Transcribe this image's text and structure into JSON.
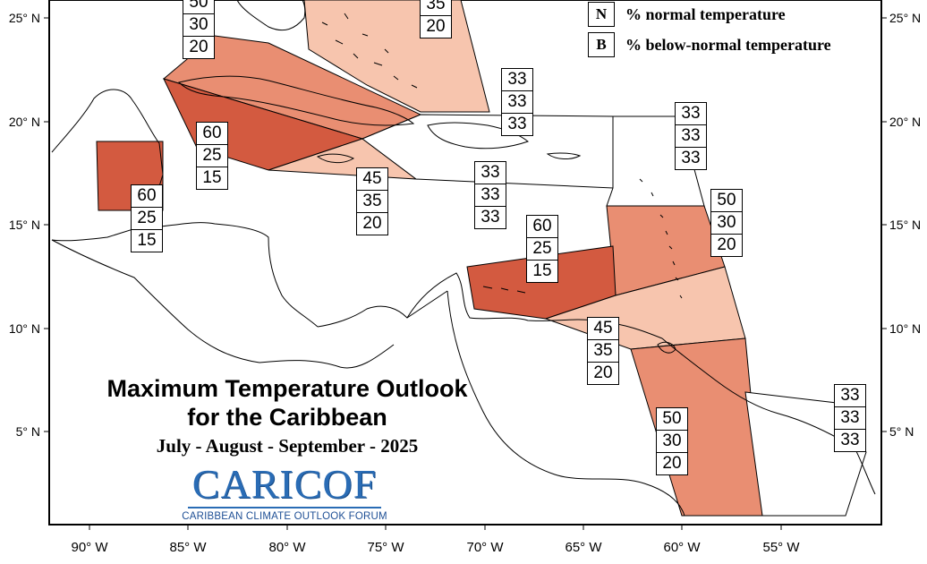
{
  "map": {
    "title_line1": "Maximum Temperature Outlook",
    "title_line2": "for the Caribbean",
    "period": "July - August - September - 2025",
    "logo": {
      "name": "CARICOF",
      "tagline": "CARIBBEAN CLIMATE OUTLOOK FORUM"
    }
  },
  "legend": [
    {
      "key": "N",
      "label": "% normal temperature"
    },
    {
      "key": "B",
      "label": "% below-normal temperature"
    }
  ],
  "axes": {
    "lat_labels": [
      "25° N",
      "20° N",
      "15° N",
      "10° N",
      "5° N"
    ],
    "lon_labels": [
      "90° W",
      "85° W",
      "80° W",
      "75° W",
      "70° W",
      "65° W",
      "60° W",
      "55° W"
    ]
  },
  "colors": {
    "prob_60": "#d35a40",
    "prob_50": "#e98e72",
    "prob_45": "#f7c5ae",
    "prob_33": "#ffffff",
    "border": "#000000",
    "logo_blue": "#2a6cb5"
  },
  "forecast_zones": [
    {
      "id": "top-left-cut",
      "above": "50",
      "normal": "30",
      "below": "20"
    },
    {
      "id": "bahamas",
      "above": "",
      "normal": "35",
      "below": "20"
    },
    {
      "id": "cuba",
      "above": "60",
      "normal": "25",
      "below": "15"
    },
    {
      "id": "belize",
      "above": "60",
      "normal": "25",
      "below": "15"
    },
    {
      "id": "jamaica",
      "above": "45",
      "normal": "35",
      "below": "20"
    },
    {
      "id": "hispaniola",
      "above": "33",
      "normal": "33",
      "below": "33"
    },
    {
      "id": "central-caribbean-sea",
      "above": "33",
      "normal": "33",
      "below": "33"
    },
    {
      "id": "leeward-north",
      "above": "33",
      "normal": "33",
      "below": "33"
    },
    {
      "id": "leeward-south",
      "above": "50",
      "normal": "30",
      "below": "20"
    },
    {
      "id": "abc-islands",
      "above": "60",
      "normal": "25",
      "below": "15"
    },
    {
      "id": "trinidad",
      "above": "45",
      "normal": "35",
      "below": "20"
    },
    {
      "id": "guyana",
      "above": "50",
      "normal": "30",
      "below": "20"
    },
    {
      "id": "french-guiana",
      "above": "33",
      "normal": "33",
      "below": "33"
    }
  ]
}
